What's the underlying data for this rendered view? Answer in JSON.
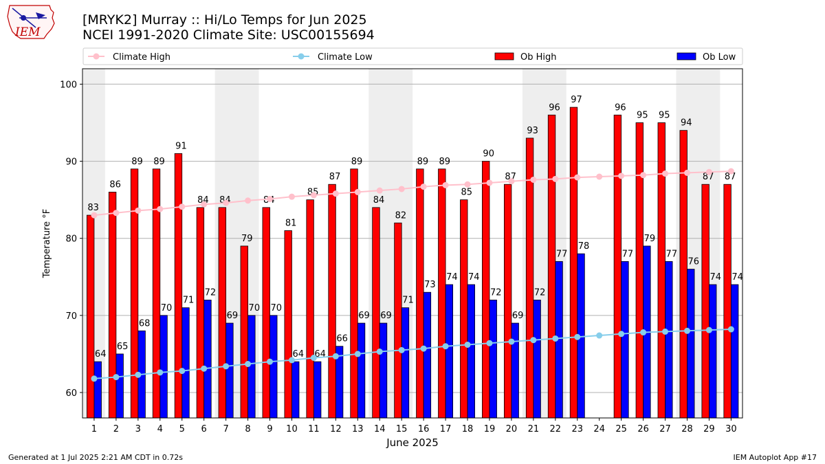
{
  "header": {
    "title_line1": "[MRYK2] Murray :: Hi/Lo Temps for Jun 2025",
    "title_line2": "NCEI 1991-2020 Climate Site: USC00155694",
    "logo_text": "IEM"
  },
  "footer": {
    "generated": "Generated at 1 Jul 2025 2:21 AM CDT in 0.72s",
    "app": "IEM Autoplot App #17"
  },
  "chart_data": {
    "type": "bar",
    "xlabel": "June 2025",
    "ylabel": "Temperature °F",
    "ylim": [
      56.7,
      102
    ],
    "yticks": [
      60,
      70,
      80,
      90,
      100
    ],
    "grid": "horizontal",
    "legend_placement": "top (above plot)",
    "days": [
      1,
      2,
      3,
      4,
      5,
      6,
      7,
      8,
      9,
      10,
      11,
      12,
      13,
      14,
      15,
      16,
      17,
      18,
      19,
      20,
      21,
      22,
      23,
      24,
      25,
      26,
      27,
      28,
      29,
      30
    ],
    "weekend_shading_days": [
      [
        1
      ],
      [
        7,
        8
      ],
      [
        14,
        15
      ],
      [
        21,
        22
      ],
      [
        28,
        29
      ]
    ],
    "series": [
      {
        "name": "Climate High",
        "kind": "line",
        "color": "#ffc0cb",
        "values": [
          83.0,
          83.3,
          83.6,
          83.8,
          84.1,
          84.4,
          84.6,
          84.9,
          85.1,
          85.4,
          85.6,
          85.8,
          86.0,
          86.2,
          86.4,
          86.7,
          86.9,
          87.0,
          87.2,
          87.4,
          87.6,
          87.7,
          87.9,
          88.0,
          88.1,
          88.2,
          88.4,
          88.5,
          88.6,
          88.7
        ]
      },
      {
        "name": "Climate Low",
        "kind": "line",
        "color": "#87ceeb",
        "values": [
          61.8,
          62.0,
          62.3,
          62.6,
          62.8,
          63.1,
          63.4,
          63.7,
          64.0,
          64.2,
          64.5,
          64.7,
          65.0,
          65.3,
          65.5,
          65.7,
          66.0,
          66.2,
          66.4,
          66.6,
          66.8,
          67.0,
          67.2,
          67.4,
          67.6,
          67.8,
          67.9,
          68.0,
          68.1,
          68.2
        ]
      },
      {
        "name": "Ob High",
        "kind": "bar",
        "color": "#ff0000",
        "values": [
          83,
          86,
          89,
          89,
          91,
          84,
          84,
          79,
          84,
          81,
          85,
          87,
          89,
          84,
          82,
          89,
          89,
          85,
          90,
          87,
          93,
          96,
          97,
          null,
          96,
          95,
          95,
          94,
          87,
          87
        ]
      },
      {
        "name": "Ob Low",
        "kind": "bar",
        "color": "#0000ff",
        "values": [
          64,
          65,
          68,
          70,
          71,
          72,
          69,
          70,
          70,
          64,
          64,
          66,
          69,
          69,
          71,
          73,
          74,
          74,
          72,
          69,
          72,
          77,
          78,
          null,
          77,
          79,
          77,
          76,
          74,
          74
        ]
      }
    ]
  }
}
